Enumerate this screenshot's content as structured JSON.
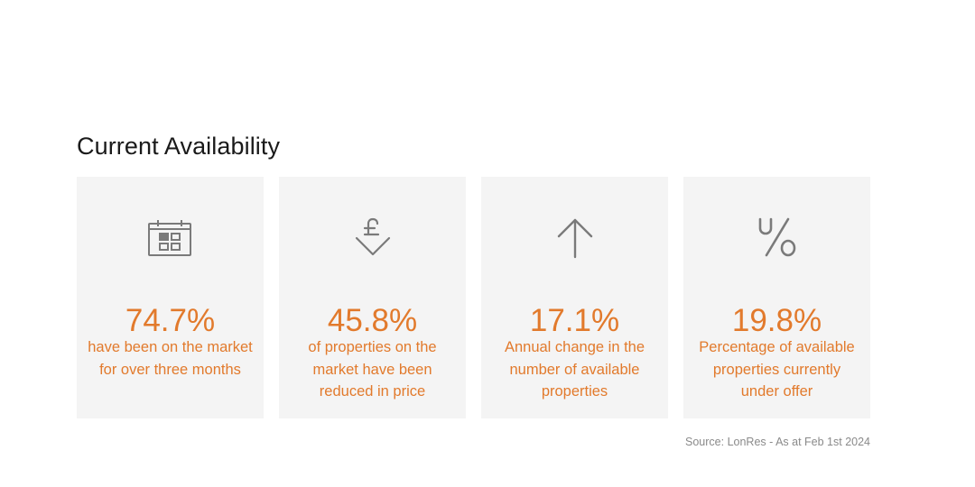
{
  "section": {
    "title": "Current Availability"
  },
  "cards": [
    {
      "icon": "calendar-icon",
      "value": "74.7%",
      "description": "have been on the market for over three months"
    },
    {
      "icon": "pound-down-arrow-icon",
      "value": "45.8%",
      "description": "of properties on the market have been reduced in price"
    },
    {
      "icon": "up-arrow-icon",
      "value": "17.1%",
      "description": "Annual change in the number of available properties"
    },
    {
      "icon": "under-offer-percent-icon",
      "value": "19.8%",
      "description": "Percentage of available properties currently under offer"
    }
  ],
  "source": "Source: LonRes - As at Feb 1st 2024",
  "colors": {
    "accent": "#e27a2c",
    "card_background": "#f4f4f4",
    "icon": "#7a7a7a",
    "source_text": "#8a8a8a"
  }
}
